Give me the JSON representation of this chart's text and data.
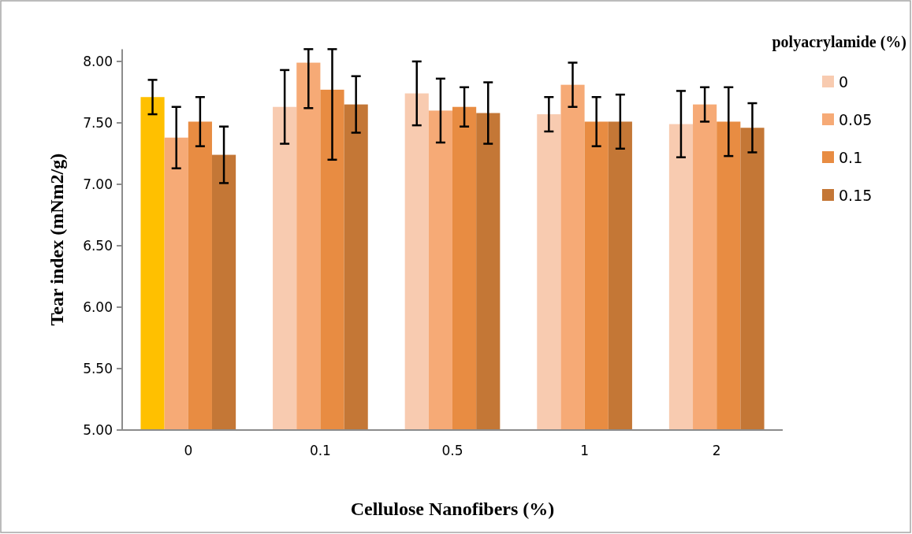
{
  "chart_data": {
    "type": "bar",
    "xlabel": "Cellulose Nanofibers (%)",
    "ylabel": "Tear index (mNm2/g)",
    "legend_title": "polyacrylamide (%)",
    "categories": [
      "0",
      "0.1",
      "0.5",
      "1",
      "2"
    ],
    "series": [
      {
        "name": "0",
        "color": "#f8cbb0",
        "colors": [
          "#ffc000",
          "#f8cbb0",
          "#f8cbb0",
          "#f8cbb0",
          "#f8cbb0"
        ],
        "values": [
          7.71,
          7.63,
          7.74,
          7.57,
          7.49
        ],
        "errors": [
          0.14,
          0.3,
          0.26,
          0.14,
          0.27
        ]
      },
      {
        "name": "0.05",
        "color": "#f6aa76",
        "values": [
          7.38,
          7.99,
          7.6,
          7.81,
          7.65
        ],
        "errors": [
          0.25,
          [
            7.62,
            8.1
          ],
          0.26,
          0.18,
          0.14
        ]
      },
      {
        "name": "0.1",
        "color": "#e88c42",
        "values": [
          7.51,
          7.77,
          7.63,
          7.51,
          7.51
        ],
        "errors": [
          0.2,
          [
            7.2,
            8.1
          ],
          0.16,
          0.2,
          0.28
        ]
      },
      {
        "name": "0.15",
        "color": "#c47736",
        "values": [
          7.24,
          7.65,
          7.58,
          7.51,
          7.46
        ],
        "errors": [
          0.23,
          0.23,
          0.25,
          0.22,
          0.2
        ]
      }
    ],
    "ylim": [
      5,
      8.1
    ],
    "yticks": [
      {
        "value": 5,
        "label": "5.00"
      },
      {
        "value": 5.5,
        "label": "5.50"
      },
      {
        "value": 6,
        "label": "6.00"
      },
      {
        "value": 6.5,
        "label": "6.50"
      },
      {
        "value": 7,
        "label": "7.00"
      },
      {
        "value": 7.5,
        "label": "7.50"
      },
      {
        "value": 8,
        "label": "8.00"
      }
    ],
    "legend": "right"
  }
}
